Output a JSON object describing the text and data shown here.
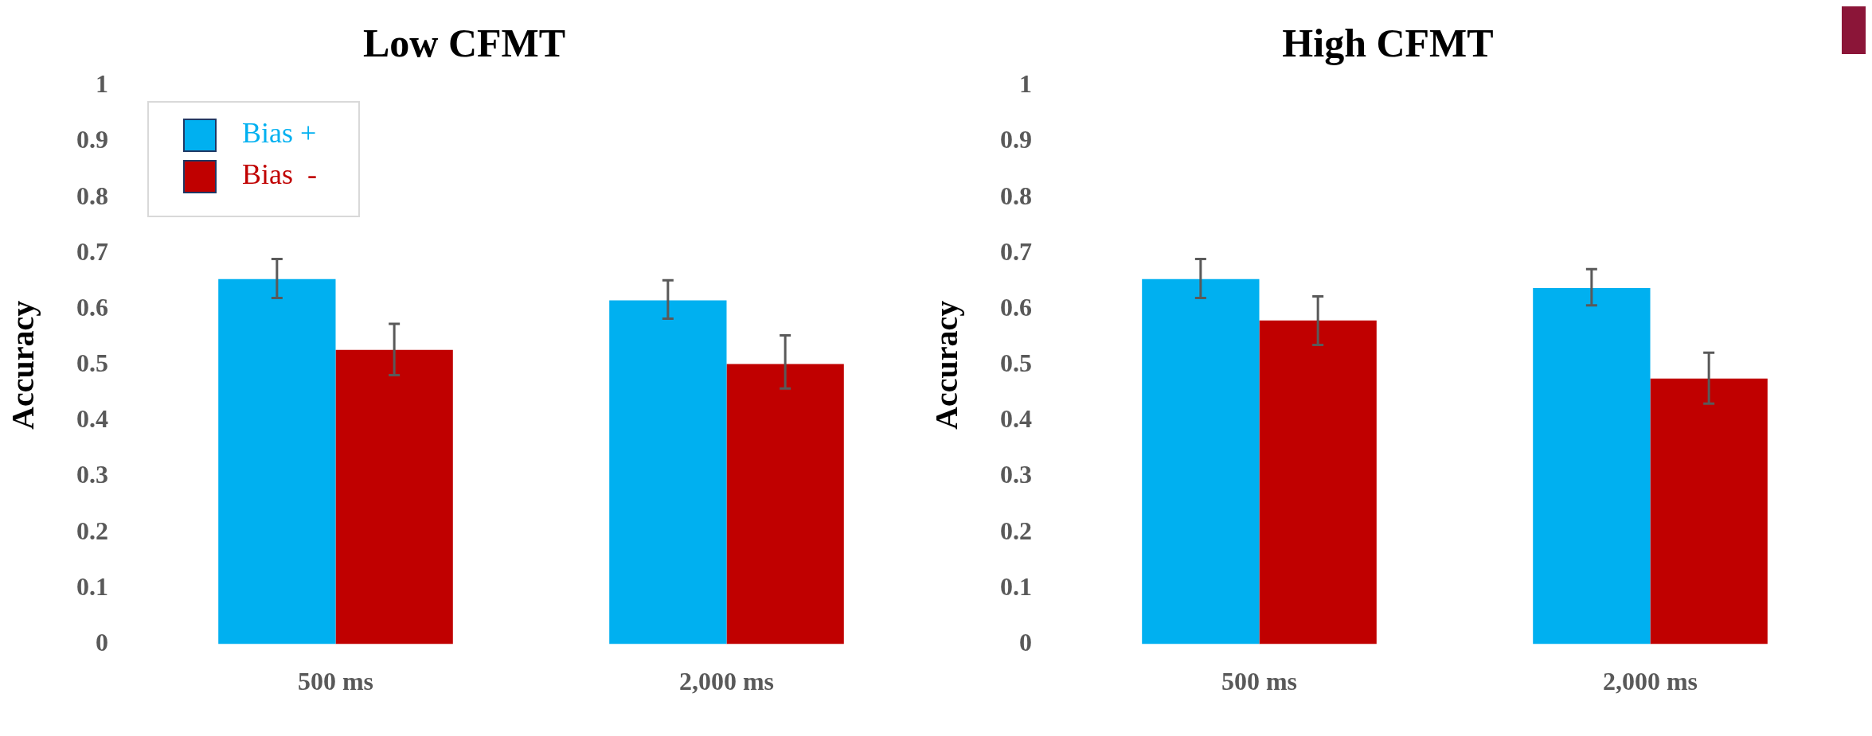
{
  "chart_data": [
    {
      "type": "bar",
      "title": "Low CFMT",
      "ylabel": "Accuracy",
      "categories": [
        "500 ms",
        "2,000 ms"
      ],
      "ylim": [
        0,
        1
      ],
      "yticks": [
        0,
        0.1,
        0.2,
        0.3,
        0.4,
        0.5,
        0.6,
        0.7,
        0.8,
        0.9,
        1
      ],
      "grid": false,
      "legend": "top left",
      "series": [
        {
          "name": "Bias +",
          "color": "#00b0f0",
          "values": [
            0.654,
            0.616
          ],
          "errors": [
            [
              0.62,
              0.69
            ],
            [
              0.583,
              0.652
            ]
          ]
        },
        {
          "name": "Bias  -",
          "color": "#c00000",
          "values": [
            0.527,
            0.502
          ],
          "errors": [
            [
              0.482,
              0.574
            ],
            [
              0.458,
              0.553
            ]
          ]
        }
      ]
    },
    {
      "type": "bar",
      "title": "High CFMT",
      "ylabel": "Accuracy",
      "categories": [
        "500 ms",
        "2,000 ms"
      ],
      "ylim": [
        0,
        1
      ],
      "yticks": [
        0,
        0.1,
        0.2,
        0.3,
        0.4,
        0.5,
        0.6,
        0.7,
        0.8,
        0.9,
        1
      ],
      "grid": false,
      "legend": false,
      "series": [
        {
          "color": "#00b0f0",
          "values": [
            0.654,
            0.638
          ],
          "errors": [
            [
              0.62,
              0.69
            ],
            [
              0.607,
              0.672
            ]
          ]
        },
        {
          "color": "#c00000",
          "values": [
            0.58,
            0.476
          ],
          "errors": [
            [
              0.536,
              0.623
            ],
            [
              0.431,
              0.522
            ]
          ]
        }
      ]
    }
  ]
}
